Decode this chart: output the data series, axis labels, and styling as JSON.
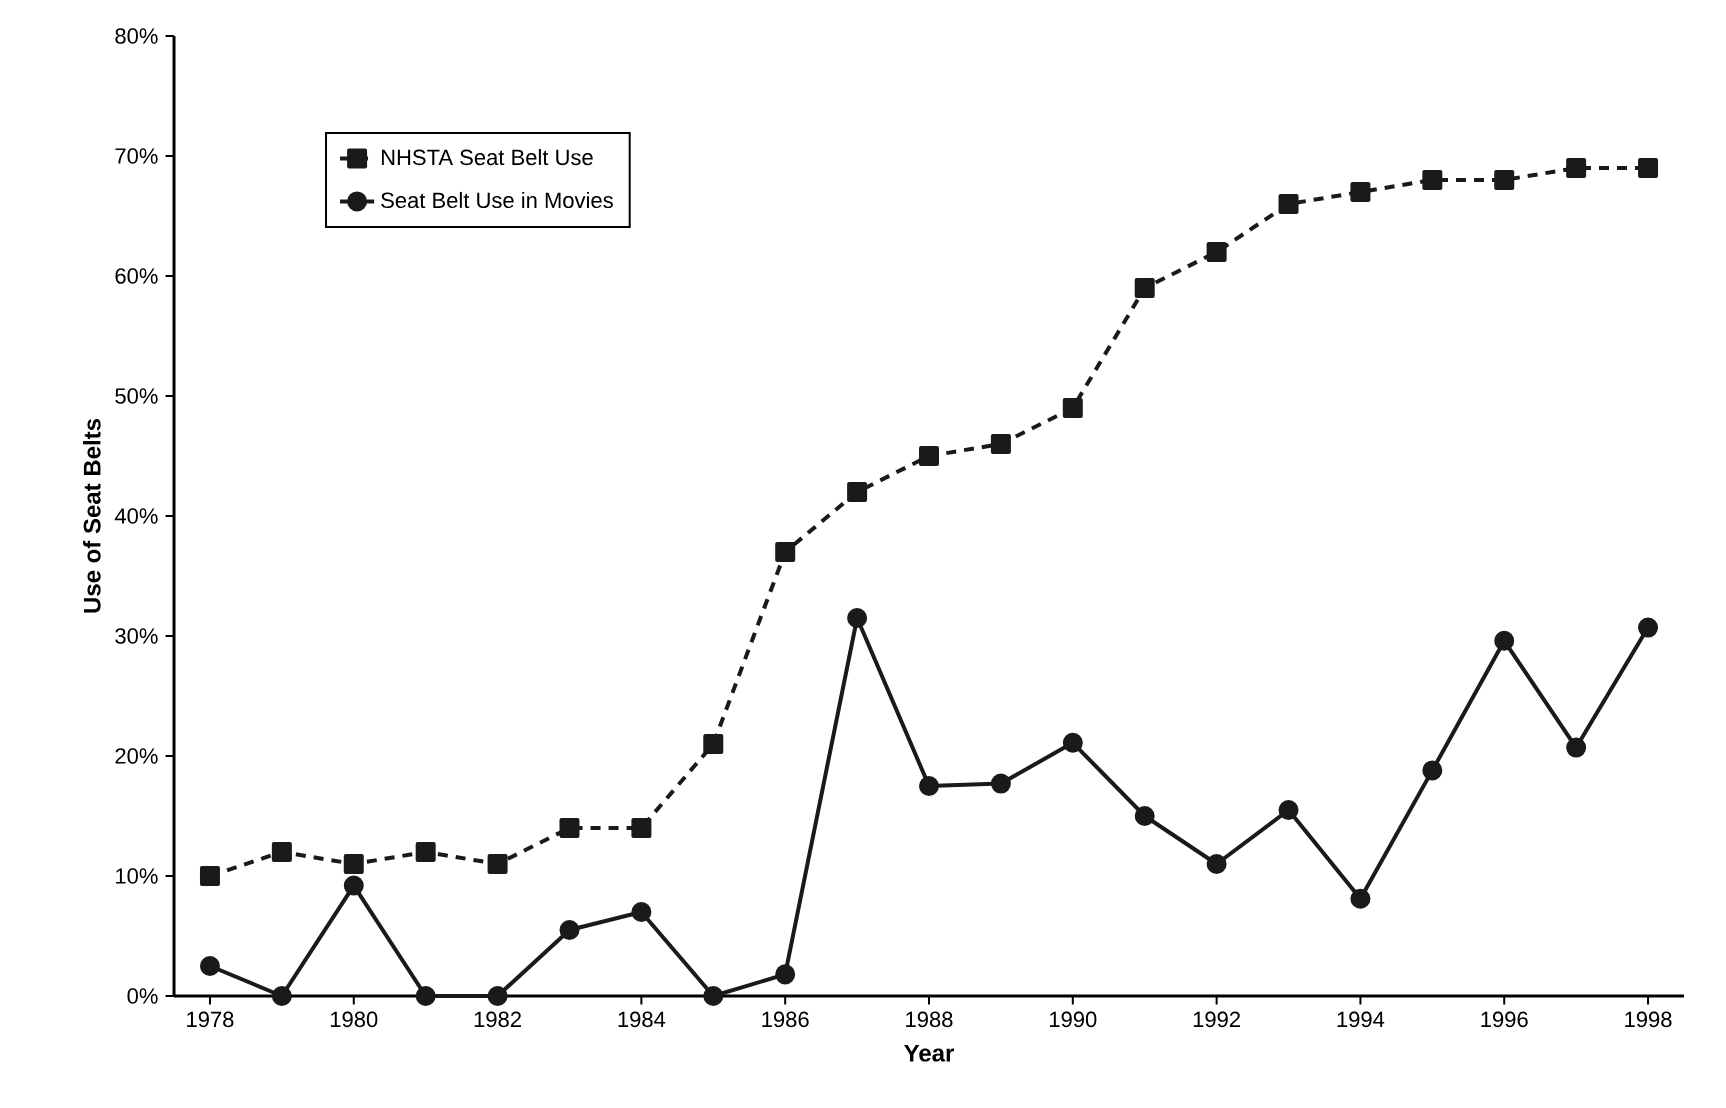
{
  "chart_data": {
    "type": "line",
    "xlabel": "Year",
    "ylabel": "Use of Seat Belts",
    "x": [
      1978,
      1979,
      1980,
      1981,
      1982,
      1983,
      1984,
      1985,
      1986,
      1987,
      1988,
      1989,
      1990,
      1991,
      1992,
      1993,
      1994,
      1995,
      1996,
      1997,
      1998
    ],
    "series": [
      {
        "name": "NHSTA Seat Belt Use",
        "color": "#1a1a1a",
        "marker": "square",
        "line_style": "dashed",
        "values": [
          10,
          12,
          11,
          12,
          11,
          14,
          14,
          21,
          37,
          42,
          45,
          46,
          49,
          59,
          62,
          66,
          67,
          68,
          68,
          69,
          69
        ]
      },
      {
        "name": "Seat Belt Use in Movies",
        "color": "#1a1a1a",
        "marker": "circle",
        "line_style": "solid",
        "values": [
          2.5,
          0,
          9.2,
          0,
          0,
          5.5,
          7,
          0,
          1.8,
          31.5,
          17.5,
          17.7,
          21.1,
          15,
          11,
          15.5,
          8.1,
          18.8,
          29.6,
          20.7,
          30.7
        ]
      }
    ],
    "xlim": [
      1977.5,
      1998.5
    ],
    "xticks": [
      1978,
      1980,
      1982,
      1984,
      1986,
      1988,
      1990,
      1992,
      1994,
      1996,
      1998
    ],
    "ylim": [
      0,
      80
    ],
    "yticks": [
      {
        "value": 0,
        "label": "0%"
      },
      {
        "value": 10,
        "label": "10%"
      },
      {
        "value": 20,
        "label": "20%"
      },
      {
        "value": 30,
        "label": "30%"
      },
      {
        "value": 40,
        "label": "40%"
      },
      {
        "value": 50,
        "label": "50%"
      },
      {
        "value": 60,
        "label": "60%"
      },
      {
        "value": 70,
        "label": "70%"
      },
      {
        "value": 80,
        "label": "80%"
      }
    ],
    "grid": false,
    "legend": "top left"
  }
}
